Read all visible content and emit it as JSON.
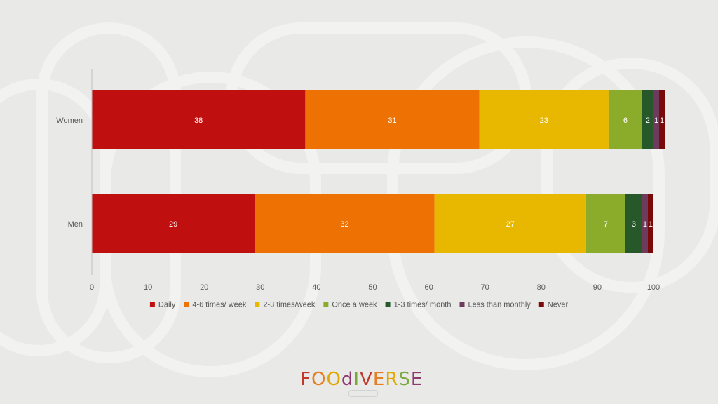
{
  "chart_data": {
    "type": "bar",
    "orientation": "horizontal",
    "stacked": true,
    "title": "",
    "xlabel": "",
    "ylabel": "",
    "xlim": [
      0,
      100
    ],
    "x_ticks": [
      0,
      10,
      20,
      30,
      40,
      50,
      60,
      70,
      80,
      90,
      100
    ],
    "grid": false,
    "legend_position": "bottom",
    "categories": [
      "Women",
      "Men"
    ],
    "series": [
      {
        "name": "Daily",
        "color": "#c00f0f",
        "values": [
          38,
          29
        ]
      },
      {
        "name": "4-6 times/ week",
        "color": "#ee7203",
        "values": [
          31,
          32
        ]
      },
      {
        "name": "2-3 times/week",
        "color": "#e8b700",
        "values": [
          23,
          27
        ]
      },
      {
        "name": "Once a week",
        "color": "#8aac2a",
        "values": [
          6,
          7
        ]
      },
      {
        "name": "1-3 times/ month",
        "color": "#26582a",
        "values": [
          2,
          3
        ]
      },
      {
        "name": "Less than monthly",
        "color": "#6e3b5c",
        "values": [
          1,
          1
        ]
      },
      {
        "name": "Never",
        "color": "#7a0a0a",
        "values": [
          1,
          1
        ]
      }
    ]
  },
  "logo": {
    "text": "FOOdIVERSE",
    "letters": [
      {
        "ch": "F",
        "color": "#c0392b"
      },
      {
        "ch": "O",
        "color": "#e67e22"
      },
      {
        "ch": "O",
        "color": "#e0a800"
      },
      {
        "ch": "d",
        "color": "#8e3b6e"
      },
      {
        "ch": "I",
        "color": "#7aa83a"
      },
      {
        "ch": "V",
        "color": "#c0392b"
      },
      {
        "ch": "E",
        "color": "#e67e22"
      },
      {
        "ch": "R",
        "color": "#e0a800"
      },
      {
        "ch": "S",
        "color": "#7aa83a"
      },
      {
        "ch": "E",
        "color": "#8e3b6e"
      }
    ]
  }
}
